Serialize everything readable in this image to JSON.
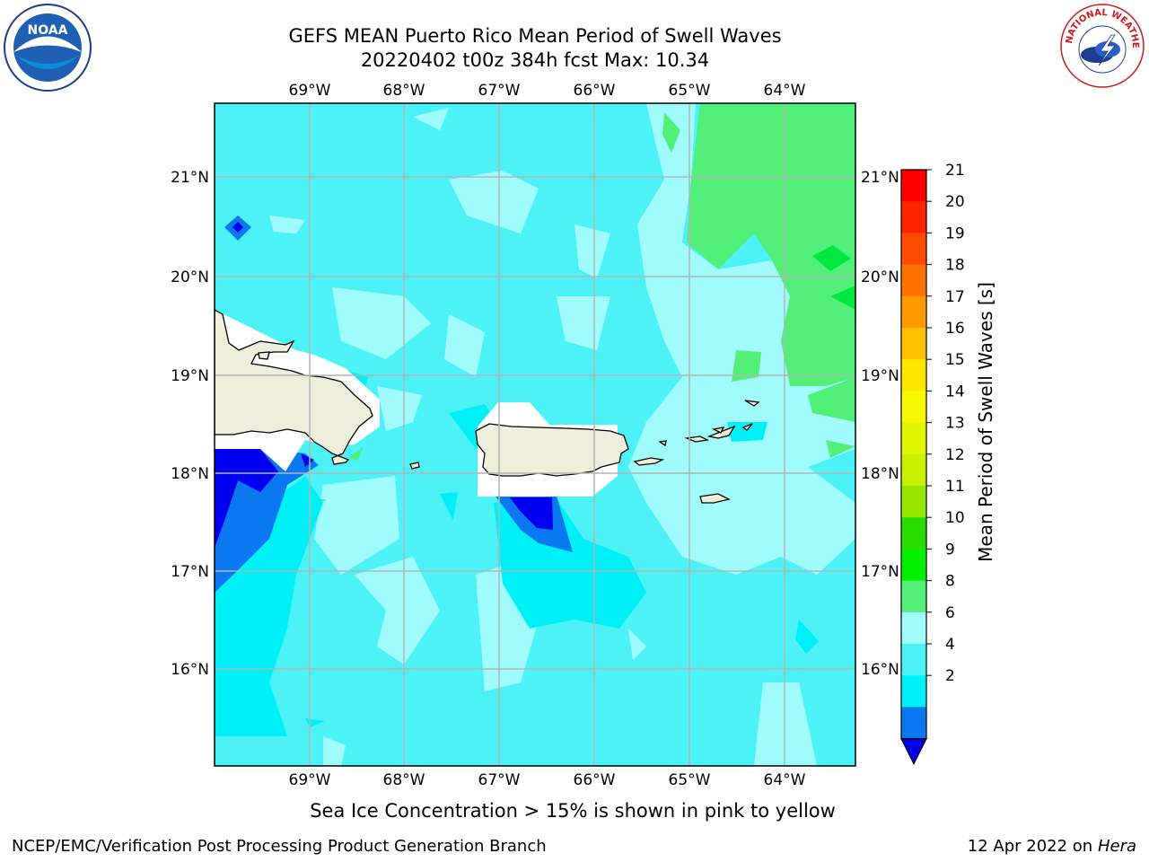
{
  "header": {
    "title_line1": "GEFS MEAN Puerto Rico Mean Period of Swell Waves",
    "title_line2": "20220402 t00z 384h fcst   Max: 10.34"
  },
  "map": {
    "lon_labels": [
      "69°W",
      "68°W",
      "67°W",
      "66°W",
      "65°W",
      "64°W"
    ],
    "lat_labels": [
      "21°N",
      "20°N",
      "19°N",
      "18°N",
      "17°N",
      "16°N"
    ],
    "fill_colors": {
      "deep_blue": "#0000ee",
      "blue": "#0a78f0",
      "cyan": "#00f0f8",
      "light_cyan": "#4cf2f6",
      "pale_cyan": "#a0fcfc",
      "green": "#52f078",
      "land": "#eeeedc",
      "grid": "#b4b4b4"
    }
  },
  "colorbar": {
    "label": "Mean Period of Swell Waves [s]",
    "ticks": [
      "21",
      "20",
      "19",
      "18",
      "17",
      "16",
      "15",
      "14",
      "13",
      "12",
      "11",
      "10",
      "9",
      "8",
      "6",
      "4",
      "2"
    ],
    "colors": [
      "#ff0000",
      "#ff2400",
      "#ff4b00",
      "#ff7200",
      "#ff9900",
      "#ffc000",
      "#ffe800",
      "#f5fa00",
      "#e0f500",
      "#c8f000",
      "#96e600",
      "#28dc00",
      "#00f000",
      "#52f078",
      "#a0fcfc",
      "#4cf2f6",
      "#00f0f8",
      "#0a78f0",
      "#0000ee"
    ]
  },
  "note": "Sea Ice Concentration > 15% is shown in pink to yellow",
  "footer": {
    "left": "NCEP/EMC/Verification Post Processing Product Generation Branch",
    "right_prefix": "12 Apr 2022 on ",
    "right_host": "Hera"
  },
  "logos": {
    "noaa_text": "NOAA",
    "nws_text": "NATIONAL WEATHER SERVICE"
  }
}
